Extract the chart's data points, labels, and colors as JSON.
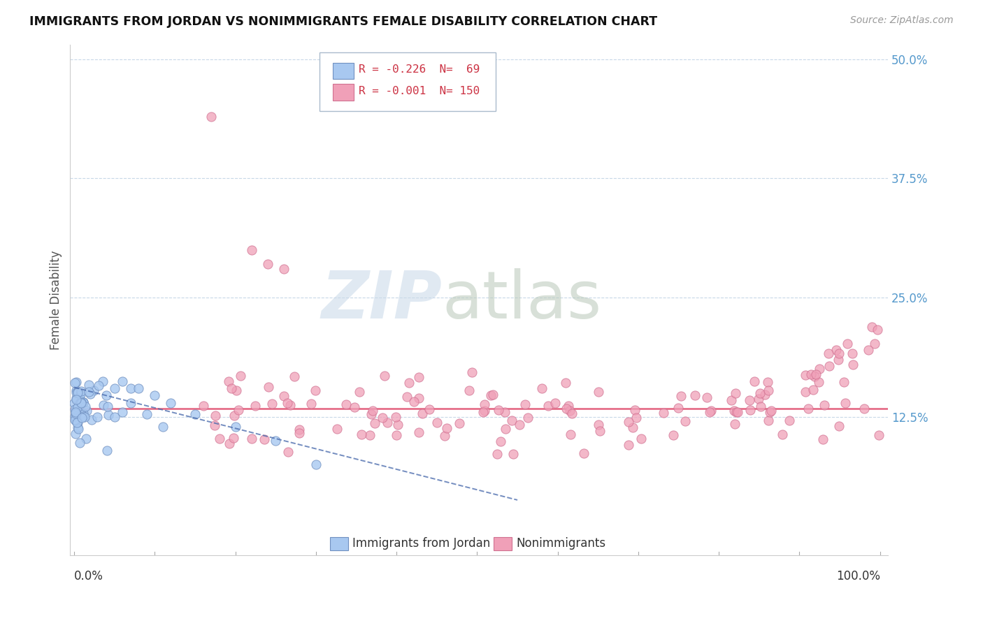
{
  "title": "IMMIGRANTS FROM JORDAN VS NONIMMIGRANTS FEMALE DISABILITY CORRELATION CHART",
  "source": "Source: ZipAtlas.com",
  "ylabel": "Female Disability",
  "color_blue": "#a8c8f0",
  "color_pink": "#f0a0b8",
  "edge_blue": "#7090c0",
  "edge_pink": "#d07090",
  "trendline_blue": "#4466aa",
  "hline_color": "#e05070",
  "hline_y": 0.134,
  "grid_color": "#c8d8e8",
  "ytick_vals": [
    0.125,
    0.25,
    0.375,
    0.5
  ],
  "ytick_labels": [
    "12.5%",
    "25.0%",
    "37.5%",
    "50.0%"
  ],
  "ylim_min": -0.02,
  "ylim_max": 0.515,
  "xlim_min": -0.005,
  "xlim_max": 1.01,
  "legend_text_color": "#cc3344",
  "watermark_zip_color": "#c8d8e8",
  "watermark_atlas_color": "#b8c8b8",
  "title_color": "#111111",
  "source_color": "#999999",
  "ylabel_color": "#555555",
  "axis_color": "#cccccc",
  "tick_label_color": "#5599cc"
}
